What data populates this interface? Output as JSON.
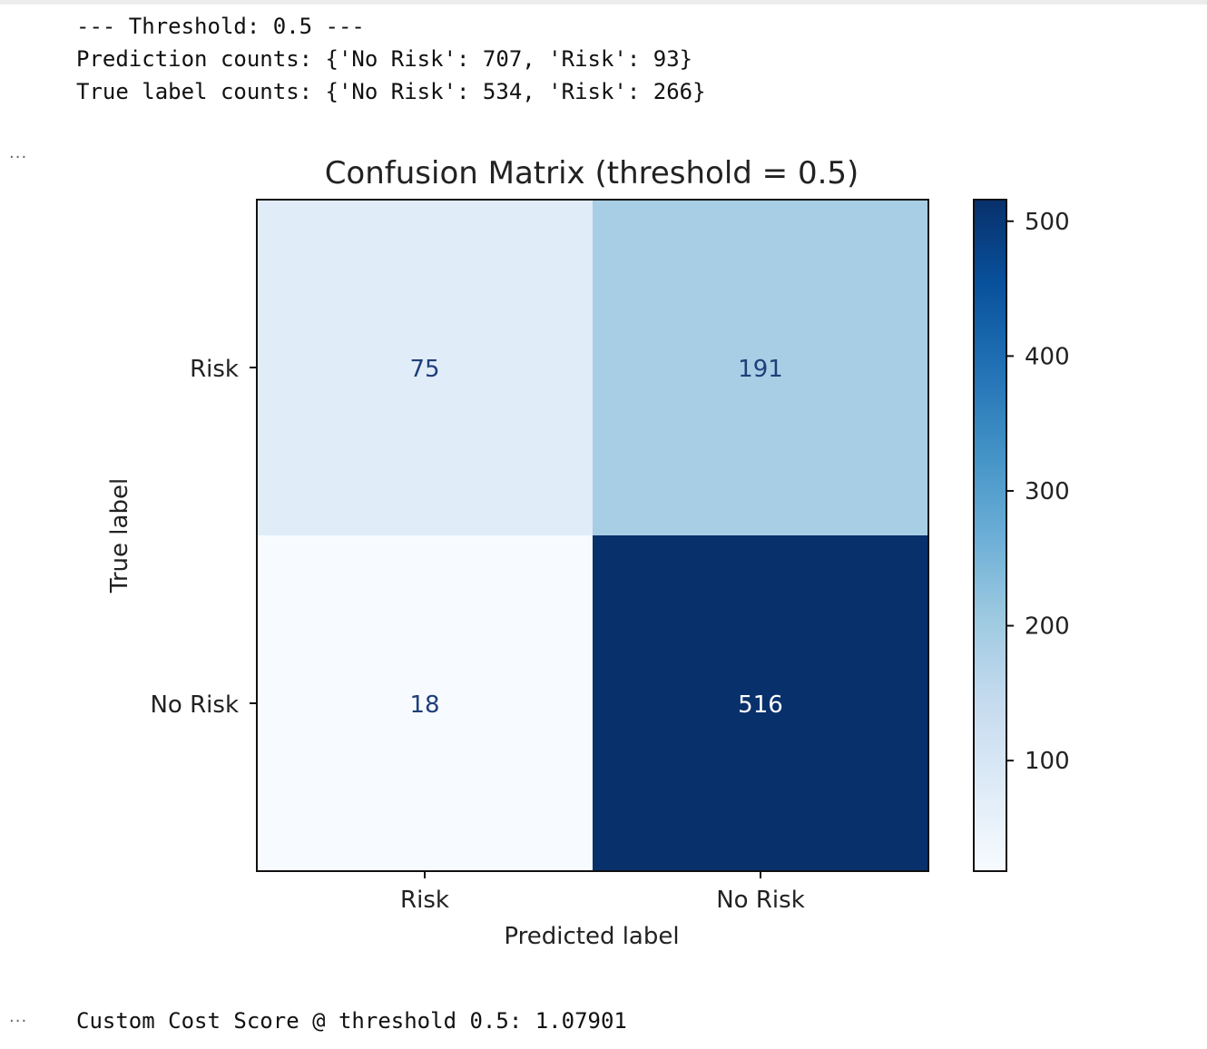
{
  "output_header": {
    "threshold_line": "--- Threshold: 0.5 ---",
    "prediction_counts_line": "Prediction counts: {'No Risk': 707, 'Risk': 93}",
    "true_label_counts_line": "True label counts: {'No Risk': 534, 'Risk': 266}"
  },
  "cell_prompt_1": "...",
  "cell_prompt_2": "...",
  "footer": {
    "score_line": "Custom Cost Score @ threshold 0.5: 1.07901"
  },
  "chart_data": {
    "type": "heatmap",
    "title": "Confusion Matrix (threshold = 0.5)",
    "xlabel": "Predicted label",
    "ylabel": "True label",
    "x_categories": [
      "Risk",
      "No Risk"
    ],
    "y_categories": [
      "Risk",
      "No Risk"
    ],
    "values": [
      [
        75,
        191
      ],
      [
        18,
        516
      ]
    ],
    "colormap": "Blues",
    "colorbar": {
      "min": 18,
      "max": 516,
      "ticks": [
        100,
        200,
        300,
        400,
        500
      ]
    },
    "cell_text_colors": {
      "light_cells": "#1f3f7a",
      "dark_cells": "#ffffff"
    },
    "grid": false
  }
}
